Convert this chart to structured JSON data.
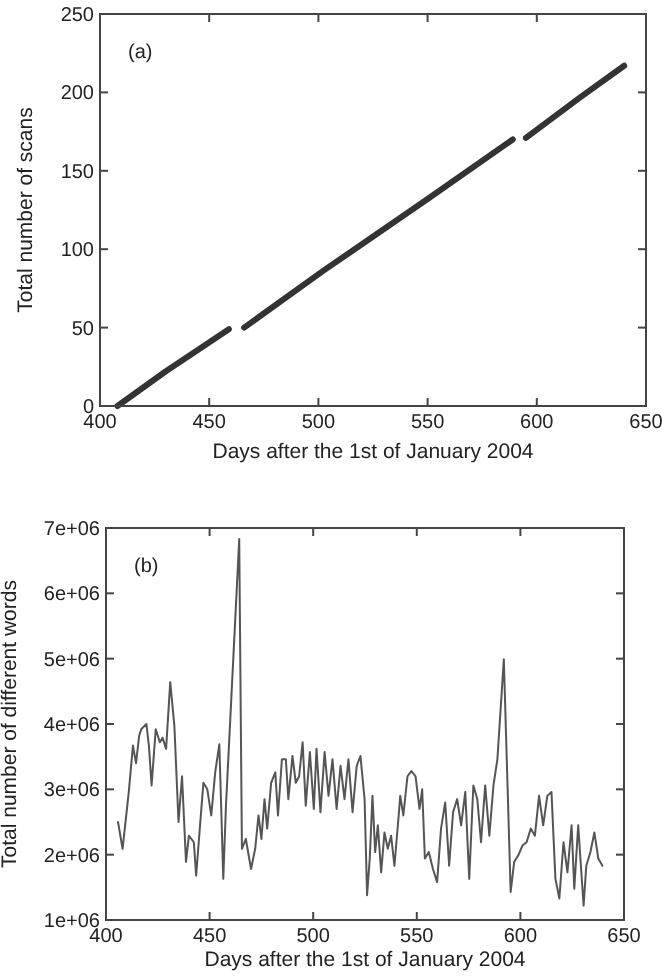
{
  "chart_data": [
    {
      "type": "line",
      "title": "(a)",
      "xlabel": "Days after the 1st of January 2004",
      "ylabel": "Total number of scans",
      "xlim": [
        400,
        650
      ],
      "xticks": [
        400,
        450,
        500,
        550,
        600,
        650
      ],
      "ylim": [
        0,
        250
      ],
      "yticks": [
        0,
        50,
        100,
        150,
        200,
        250
      ],
      "grid": false,
      "marker": "none",
      "line_style": "solid",
      "series": [
        {
          "color": "#333333",
          "x": [
            408,
            430,
            459,
            462,
            466,
            502,
            550,
            589,
            592,
            595,
            620,
            640
          ],
          "values": [
            0,
            22,
            49,
            null,
            50,
            86,
            132,
            170,
            null,
            171,
            197,
            217
          ]
        }
      ]
    },
    {
      "type": "line",
      "title": "(b)",
      "xlabel": "Days after the 1st of January 2004",
      "ylabel": "Total number of different words",
      "xlim": [
        400,
        650
      ],
      "xticks": [
        400,
        450,
        500,
        550,
        600,
        650
      ],
      "ylim": [
        1000000,
        7000000
      ],
      "yticks": [
        {
          "value": 1000000,
          "label": "1e+06"
        },
        {
          "value": 2000000,
          "label": "2e+06"
        },
        {
          "value": 3000000,
          "label": "3e+06"
        },
        {
          "value": 4000000,
          "label": "4e+06"
        },
        {
          "value": 5000000,
          "label": "5e+06"
        },
        {
          "value": 6000000,
          "label": "6e+06"
        },
        {
          "value": 7000000,
          "label": "7e+06"
        }
      ],
      "grid": false,
      "marker": "none",
      "line_style": "solid",
      "series": [
        {
          "color": "#555555",
          "x": [
            405.8,
            408,
            411,
            413,
            414.5,
            416,
            417,
            419.5,
            420.7,
            422,
            424,
            426,
            427.3,
            429,
            431,
            433,
            435,
            436.7,
            438.6,
            440,
            442.4,
            443.5,
            445,
            447,
            448.9,
            450.8,
            452.7,
            454.7,
            456.6,
            457.9,
            464.3,
            465.6,
            467.5,
            470,
            472,
            473.6,
            475,
            476.5,
            477.8,
            479.7,
            481.7,
            483,
            484.9,
            486.8,
            488,
            490,
            491.6,
            493.2,
            494.9,
            496.4,
            498.4,
            500.3,
            501.6,
            503.5,
            505.5,
            507.4,
            509.3,
            511.3,
            513.2,
            515.1,
            517,
            519,
            521,
            522.8,
            524.8,
            526,
            527.3,
            528.6,
            529.9,
            531.2,
            532.8,
            534.4,
            536,
            537.6,
            539.2,
            541,
            542,
            543.5,
            545.5,
            547.4,
            549.4,
            551.3,
            552.6,
            553.9,
            555.8,
            557.8,
            559.8,
            561.7,
            563.7,
            565.6,
            567.5,
            569.5,
            571.4,
            573.4,
            575.3,
            577.3,
            579.2,
            581,
            583,
            585,
            587,
            588.9,
            592,
            595.3,
            597,
            599,
            601,
            603,
            605,
            607,
            609,
            611,
            613,
            615,
            616.9,
            618.8,
            620.8,
            622.7,
            624.7,
            626,
            627.9,
            629.2,
            630.5,
            631.8,
            633.8,
            635.7,
            637.6,
            639.6
          ],
          "values": [
            2500000,
            2090000,
            2960000,
            3670000,
            3400000,
            3820000,
            3920000,
            4000000,
            3670000,
            3060000,
            3920000,
            3720000,
            3790000,
            3620000,
            4640000,
            3970000,
            2500000,
            3200000,
            1890000,
            2290000,
            2190000,
            1680000,
            2290000,
            3100000,
            3000000,
            2600000,
            3260000,
            3690000,
            1630000,
            2750000,
            6830000,
            2090000,
            2240000,
            1780000,
            2090000,
            2600000,
            2240000,
            2850000,
            2400000,
            3100000,
            3260000,
            2600000,
            3460000,
            3460000,
            2850000,
            3510000,
            3100000,
            3200000,
            3720000,
            2750000,
            3570000,
            2700000,
            3620000,
            2650000,
            3570000,
            2900000,
            3460000,
            2700000,
            3360000,
            2850000,
            3460000,
            2650000,
            3360000,
            3510000,
            2850000,
            1380000,
            1940000,
            2900000,
            2040000,
            2450000,
            1730000,
            2340000,
            2090000,
            2290000,
            1830000,
            2500000,
            2900000,
            2600000,
            3200000,
            3280000,
            3200000,
            2700000,
            3000000,
            1940000,
            2040000,
            1780000,
            1580000,
            2400000,
            2800000,
            1830000,
            2650000,
            2850000,
            2450000,
            2960000,
            1630000,
            3060000,
            2850000,
            2190000,
            3060000,
            2290000,
            3060000,
            3460000,
            4990000,
            1430000,
            1890000,
            1990000,
            2140000,
            2190000,
            2400000,
            2290000,
            2900000,
            2450000,
            2900000,
            2960000,
            1630000,
            1330000,
            2190000,
            1730000,
            2450000,
            1480000,
            2450000,
            1830000,
            1220000,
            1830000,
            2040000,
            2340000,
            1940000,
            1830000
          ]
        }
      ]
    }
  ]
}
